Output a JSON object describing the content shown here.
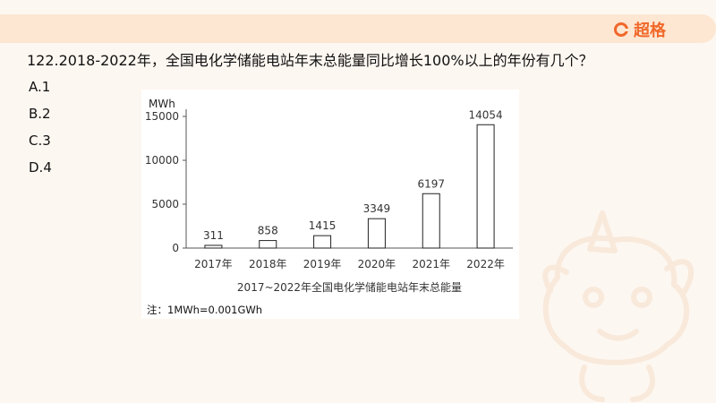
{
  "header": {
    "logo_text": "超格",
    "accent_color": "#f0682a",
    "bar_color": "#fde7d2"
  },
  "question": {
    "text": "122.2018-2022年，全国电化学储能电站年末总能量同比增长100%以上的年份有几个？",
    "options": [
      "A.1",
      "B.2",
      "C.3",
      "D.4"
    ]
  },
  "chart_data": {
    "type": "bar",
    "title": "2017~2022年全国电化学储能电站年末总能量",
    "ylabel": "MWh",
    "xlabel": "",
    "categories": [
      "2017年",
      "2018年",
      "2019年",
      "2020年",
      "2021年",
      "2022年"
    ],
    "values": [
      311,
      858,
      1415,
      3349,
      6197,
      14054
    ],
    "ylim": [
      0,
      15000
    ],
    "yticks": [
      0,
      5000,
      10000,
      15000
    ],
    "grid": false,
    "bar_fill": "#ffffff",
    "bar_stroke": "#222222",
    "note": "注：1MWh=0.001GWh"
  }
}
